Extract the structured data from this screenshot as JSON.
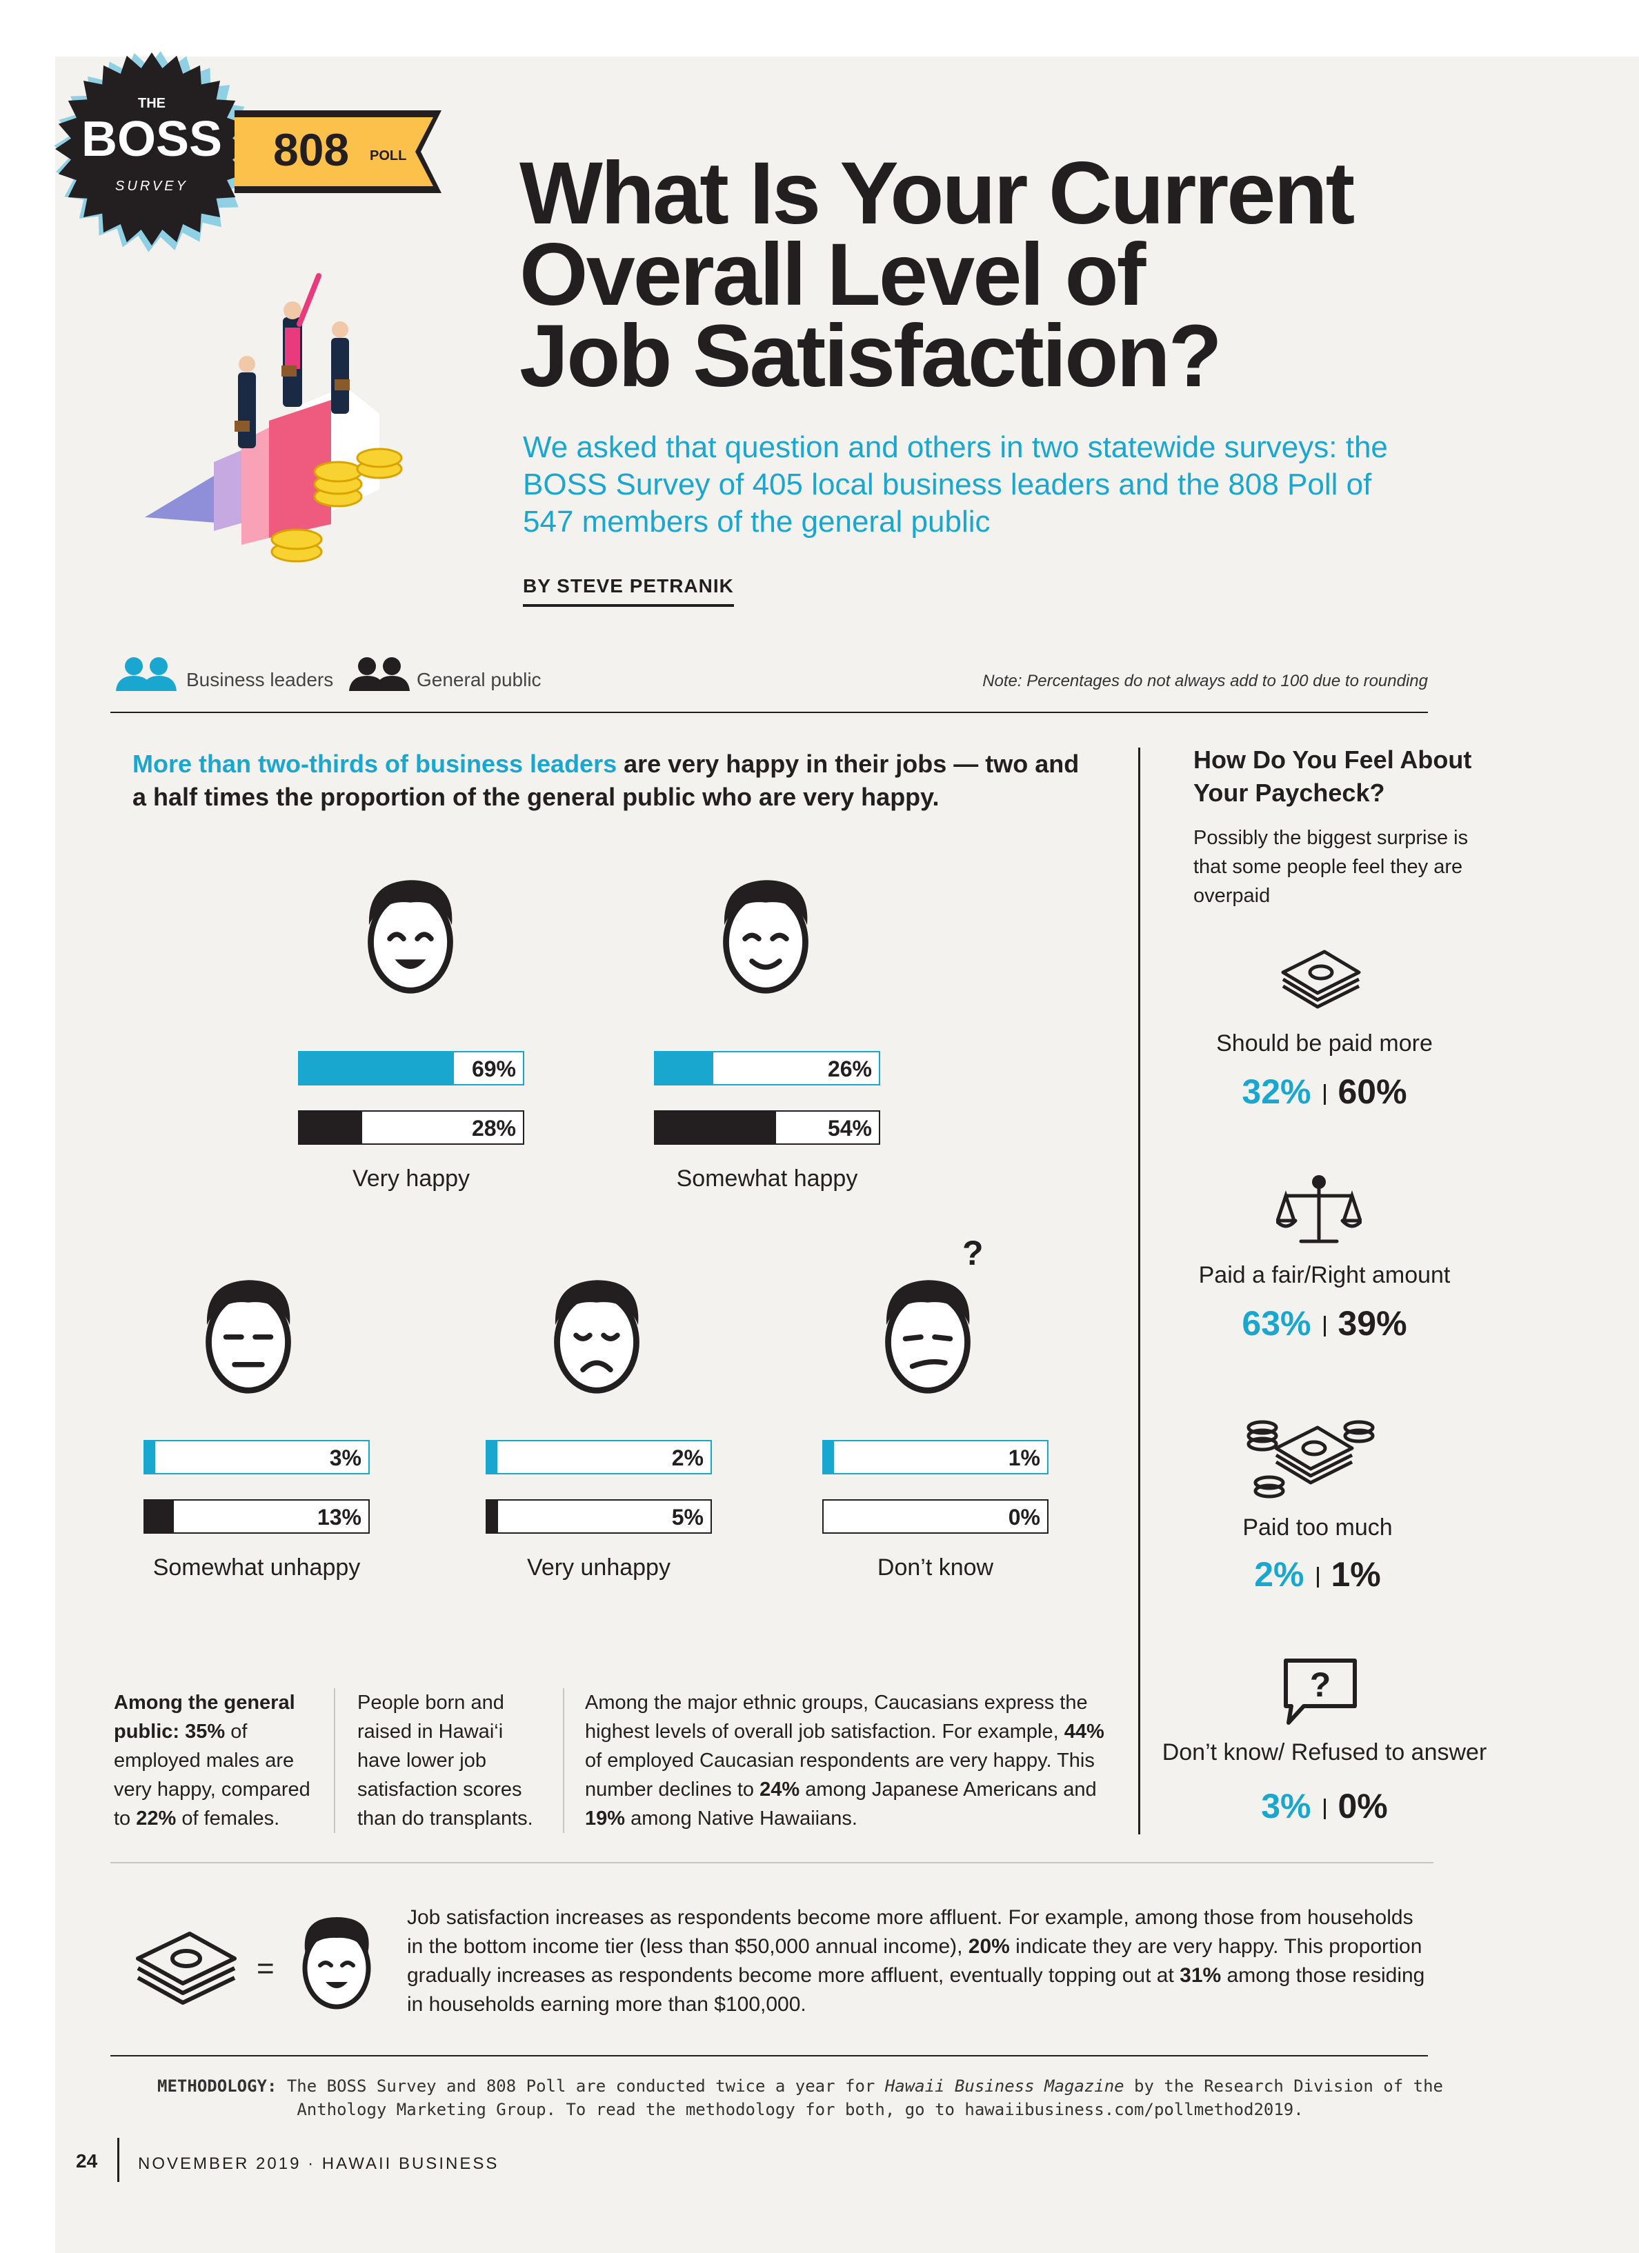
{
  "header": {
    "badge_top": "THE",
    "badge_main": "BOSS",
    "badge_bottom": "SURVEY",
    "ribbon_num": "808",
    "ribbon_word": "POLL",
    "title_lines": [
      "What Is Your Current",
      "Overall Level of",
      "Job Satisfaction?"
    ],
    "subtitle": "We asked that question and others in two statewide surveys: the BOSS Survey of 405 local business leaders and the 808 Poll of 547 members of the general public",
    "byline": "BY STEVE PETRANIK"
  },
  "legend": {
    "business": "Business leaders",
    "public": "General public",
    "note": "Note: Percentages do not always add to 100 due to rounding"
  },
  "lead": {
    "highlight": "More than two-thirds of business leaders",
    "rest": " are very happy in their jobs — two and a half times the proportion of the general public who are very happy."
  },
  "chart_data": {
    "type": "bar",
    "categories": [
      "Very happy",
      "Somewhat happy",
      "Somewhat unhappy",
      "Very unhappy",
      "Don’t know"
    ],
    "series": [
      {
        "name": "Business leaders",
        "values": [
          69,
          26,
          3,
          2,
          1
        ]
      },
      {
        "name": "General public",
        "values": [
          28,
          54,
          13,
          5,
          0
        ]
      }
    ],
    "labels_bl": [
      "69%",
      "26%",
      "3%",
      "2%",
      "1%"
    ],
    "labels_gp": [
      "28%",
      "54%",
      "13%",
      "5%",
      "0%"
    ],
    "unit": "%",
    "ylim": [
      0,
      100
    ]
  },
  "sidebar": {
    "heading": "How Do You Feel About Your Paycheck?",
    "intro": "Possibly the biggest surprise is that some people feel they are overpaid",
    "items": [
      {
        "label": "Should be paid more",
        "bl": "32%",
        "gp": "60%"
      },
      {
        "label": "Paid a fair/Right amount",
        "bl": "63%",
        "gp": "39%"
      },
      {
        "label": "Paid too much",
        "bl": "2%",
        "gp": "1%"
      },
      {
        "label": "Don’t know/ Refused to answer",
        "bl": "3%",
        "gp": "0%"
      }
    ]
  },
  "facts": {
    "f1_a": "Among the general public:",
    "f1_b": "35%",
    "f1_c": " of employed males are very happy, compared to ",
    "f1_d": "22%",
    "f1_e": " of females.",
    "f2": "People born and raised in Hawai‘i have lower job satisfaction scores than do transplants.",
    "f3_a": "Among the major ethnic groups, Caucasians express the highest levels of overall job satisfaction. For example, ",
    "f3_b": "44%",
    "f3_c": " of employed Caucasian respondents are very happy. This number declines to ",
    "f3_d": "24%",
    "f3_e": " among Japanese Americans and ",
    "f3_f": "19%",
    "f3_g": " among Native Hawaiians.",
    "income_a": "Job satisfaction increases as respondents become more affluent. For example, among those from households in the bottom income tier (less than $50,000 annual income), ",
    "income_b": "20%",
    "income_c": " indicate they are very happy. This proportion gradually increases as respondents become more affluent, eventually topping out at ",
    "income_d": "31%",
    "income_e": " among those residing in households earning more than $100,000.",
    "equals": "="
  },
  "methodology": {
    "label": "METHODOLOGY:",
    "text_a": " The BOSS Survey and 808 Poll are conducted twice a year for ",
    "magazine": "Hawaii Business Magazine",
    "text_b": " by the Research Division of the Anthology Marketing Group. To read the methodology for both, go to hawaiibusiness.com/pollmethod2019."
  },
  "footer": {
    "page": "24",
    "issue": "NOVEMBER 2019 · HAWAII BUSINESS"
  },
  "colors": {
    "accent": "#1aa7cf",
    "ink": "#231f20",
    "ribbon": "#fbc14b",
    "pink": "#e93a7d"
  }
}
